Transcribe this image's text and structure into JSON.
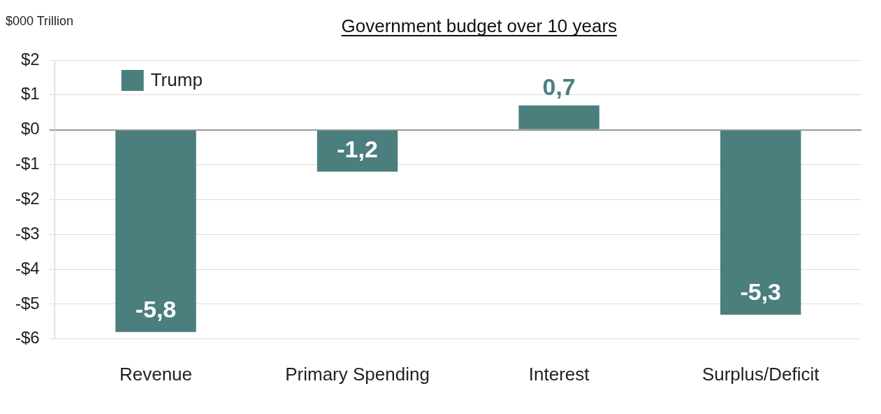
{
  "chart_data": {
    "type": "bar",
    "title": "Government budget over 10 years",
    "ylabel": "$000 Trillion",
    "categories": [
      "Revenue",
      "Primary Spending",
      "Interest",
      "Surplus/Deficit"
    ],
    "series": [
      {
        "name": "Trump",
        "color": "#4a7f7e",
        "values": [
          -5.8,
          -1.2,
          0.7,
          -5.3
        ],
        "value_labels": [
          "-5,8",
          "-1,2",
          "0,7",
          "-5,3"
        ]
      }
    ],
    "ylim": [
      -6,
      2
    ],
    "yticks": [
      {
        "value": 2,
        "label": "$2"
      },
      {
        "value": 1,
        "label": "$1"
      },
      {
        "value": 0,
        "label": "$0"
      },
      {
        "value": -1,
        "label": "-$1"
      },
      {
        "value": -2,
        "label": "-$2"
      },
      {
        "value": -3,
        "label": "-$3"
      },
      {
        "value": -4,
        "label": "-$4"
      },
      {
        "value": -5,
        "label": "-$5"
      },
      {
        "value": -6,
        "label": "-$6"
      }
    ],
    "grid": "y",
    "legend": "top left"
  }
}
